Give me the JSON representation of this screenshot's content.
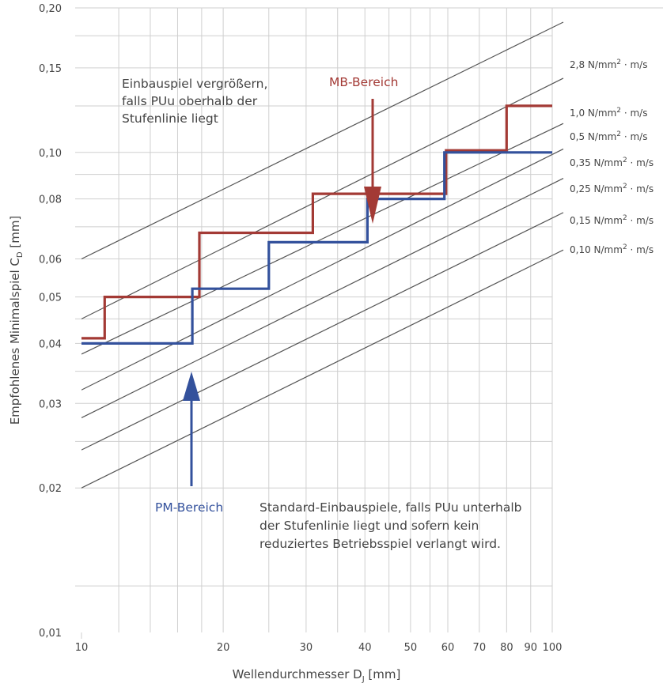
{
  "chart_data": {
    "type": "line",
    "x_scale": "log",
    "y_scale": "log",
    "xlim": [
      10,
      100
    ],
    "ylim": [
      0.01,
      0.2
    ],
    "grid": true,
    "xlabel": "Wellendurchmesser D",
    "xlabel_sub": "J",
    "xlabel_unit": " [mm]",
    "ylabel": "Empfohlenes Minimalspiel C",
    "ylabel_sub": "D",
    "ylabel_unit": " [mm]",
    "x_ticks": [
      {
        "value": 10,
        "label": "10"
      },
      {
        "value": 20,
        "label": "20"
      },
      {
        "value": 30,
        "label": "30"
      },
      {
        "value": 40,
        "label": "40"
      },
      {
        "value": 50,
        "label": "50"
      },
      {
        "value": 60,
        "label": "60"
      },
      {
        "value": 70,
        "label": "70"
      },
      {
        "value": 80,
        "label": "80"
      },
      {
        "value": 90,
        "label": "90"
      },
      {
        "value": 100,
        "label": "100"
      }
    ],
    "y_ticks": [
      {
        "value": 0.01,
        "label": "0,01"
      },
      {
        "value": 0.02,
        "label": "0,02"
      },
      {
        "value": 0.03,
        "label": "0,03"
      },
      {
        "value": 0.04,
        "label": "0,04"
      },
      {
        "value": 0.05,
        "label": "0,05"
      },
      {
        "value": 0.06,
        "label": "0,06"
      },
      {
        "value": 0.08,
        "label": "0,08"
      },
      {
        "value": 0.1,
        "label": "0,10"
      },
      {
        "value": 0.15,
        "label": "0,15"
      },
      {
        "value": 0.2,
        "label": "0,20"
      }
    ],
    "x_grid": [
      12,
      14,
      16,
      18,
      20,
      25,
      30,
      35,
      40,
      45,
      50,
      55,
      60,
      70,
      80,
      90,
      100
    ],
    "y_grid": [
      0.0125,
      0.02,
      0.025,
      0.03,
      0.035,
      0.04,
      0.045,
      0.05,
      0.06,
      0.07,
      0.08,
      0.09,
      0.1,
      0.125,
      0.15,
      0.175,
      0.2
    ],
    "rate_lines": [
      {
        "label": "2,8 N/mm",
        "suffix": " · m/s",
        "y10": 0.06,
        "y100": 0.182
      },
      {
        "label": "1,0 N/mm",
        "suffix": " · m/s",
        "y10": 0.045,
        "y100": 0.139
      },
      {
        "label": "0,5 N/mm",
        "suffix": " · m/s",
        "y10": 0.038,
        "y100": 0.112
      },
      {
        "label": "0,35 N/mm",
        "suffix": " · m/s",
        "y10": 0.032,
        "y100": 0.099
      },
      {
        "label": "0,25 N/mm",
        "suffix": " · m/s",
        "y10": 0.028,
        "y100": 0.086
      },
      {
        "label": "0,15 N/mm",
        "suffix": " · m/s",
        "y10": 0.024,
        "y100": 0.073
      },
      {
        "label": "0,10 N/mm",
        "suffix": " · m/s",
        "y10": 0.02,
        "y100": 0.061
      }
    ],
    "series": [
      {
        "name": "MB-Bereich",
        "color": "#a33a35",
        "x": [
          10,
          11.2,
          11.2,
          17.8,
          17.8,
          31,
          31,
          59.5,
          59.5,
          80,
          80,
          100
        ],
        "y": [
          0.041,
          0.041,
          0.05,
          0.05,
          0.068,
          0.068,
          0.082,
          0.082,
          0.101,
          0.101,
          0.125,
          0.125
        ]
      },
      {
        "name": "PM-Bereich",
        "color": "#33519c",
        "x": [
          10,
          17.2,
          17.2,
          25,
          25,
          40.5,
          40.5,
          59,
          59,
          100
        ],
        "y": [
          0.04,
          0.04,
          0.052,
          0.052,
          0.065,
          0.065,
          0.08,
          0.08,
          0.1,
          0.1
        ]
      }
    ],
    "annotations": {
      "mb_label": "MB-Bereich",
      "pm_label": "PM-Bereich",
      "upper_text": [
        "Einbauspiel vergrößern,",
        "falls PUu oberhalb der",
        "Stufenlinie liegt"
      ],
      "lower_text": [
        "Standard-Einbauspiele, falls PUu unterhalb",
        "der Stufenlinie liegt und sofern kein",
        "reduziertes Betriebsspiel verlangt wird."
      ]
    }
  }
}
